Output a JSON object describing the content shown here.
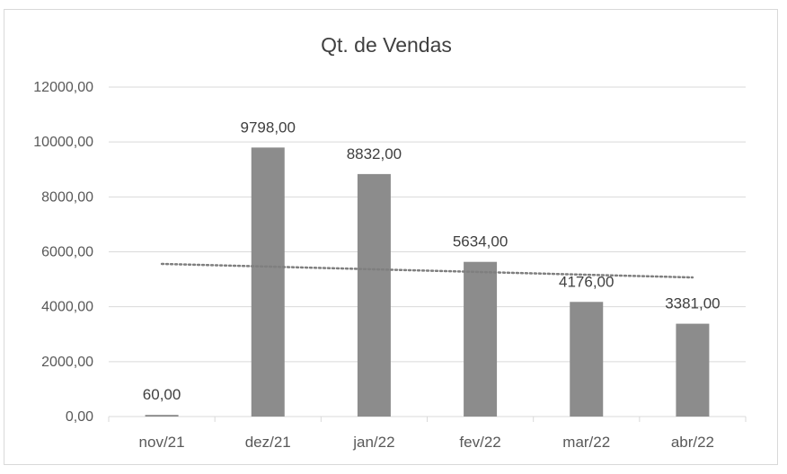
{
  "chart_data": {
    "type": "bar",
    "title": "Qt. de Vendas",
    "xlabel": "",
    "ylabel": "",
    "categories": [
      "nov/21",
      "dez/21",
      "jan/22",
      "fev/22",
      "mar/22",
      "abr/22"
    ],
    "values": [
      60,
      9798,
      8832,
      5634,
      4176,
      3381
    ],
    "data_labels": [
      "60,00",
      "9798,00",
      "8832,00",
      "5634,00",
      "4176,00",
      "3381,00"
    ],
    "ylim": [
      0,
      12000
    ],
    "yticks": [
      0,
      2000,
      4000,
      6000,
      8000,
      10000,
      12000
    ],
    "ytick_labels": [
      "0,00",
      "2000,00",
      "4000,00",
      "6000,00",
      "8000,00",
      "10000,00",
      "12000,00"
    ],
    "grid": true,
    "legend": "none",
    "trendline": {
      "type": "linear",
      "style": "dotted"
    },
    "colors": {
      "bar": "#8c8c8c",
      "trendline": "#7f7f7f",
      "grid": "#d9d9d9",
      "axis_text": "#595959",
      "title_text": "#404040"
    }
  }
}
